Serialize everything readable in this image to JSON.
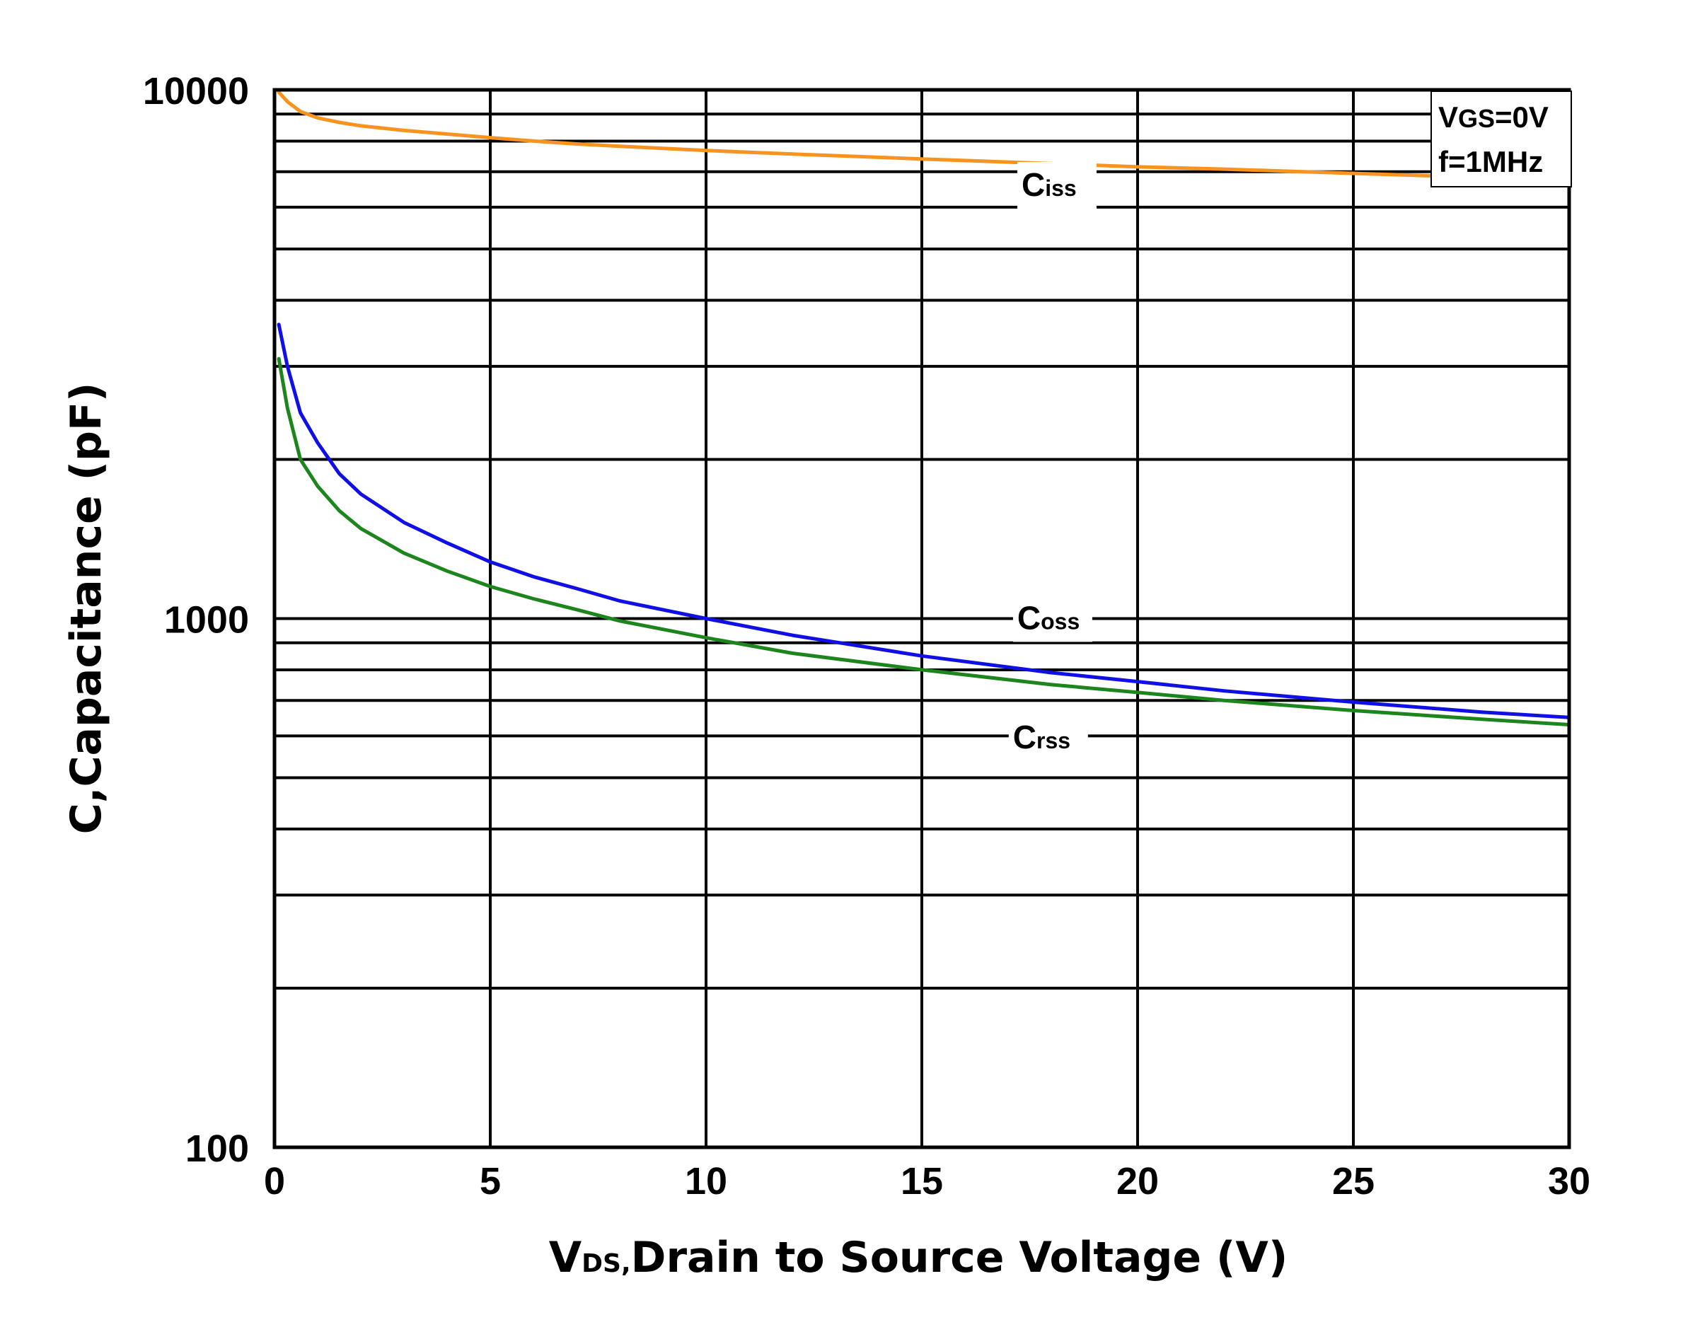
{
  "chart_data": {
    "type": "line",
    "xlabel": {
      "main": "V",
      "sub": "DS,",
      "rest": "Drain to Source Voltage (V)"
    },
    "ylabel": "C,Capacitance (pF)",
    "xlim": [
      0,
      30
    ],
    "ylim": [
      100,
      10000
    ],
    "yscale": "log",
    "grid": true,
    "x_ticks": [
      0,
      5,
      10,
      15,
      20,
      25,
      30
    ],
    "x_tick_labels": [
      "0",
      "5",
      "10",
      "15",
      "20",
      "25",
      "30"
    ],
    "y_ticks": [
      100,
      1000,
      10000
    ],
    "y_tick_labels": [
      "100",
      "1000",
      "10000"
    ],
    "conditions": [
      {
        "main": "V",
        "sub": "GS",
        "rest": "=0V"
      },
      {
        "main": "f=1MHz",
        "sub": "",
        "rest": ""
      }
    ],
    "series": [
      {
        "name": {
          "main": "C",
          "sub": "iss"
        },
        "color": "#f7931e",
        "x": [
          0.1,
          0.3,
          0.6,
          1,
          1.5,
          2,
          3,
          4,
          5,
          6,
          7,
          8,
          10,
          12,
          15,
          18,
          20,
          22,
          25,
          27
        ],
        "y": [
          9900,
          9500,
          9100,
          8850,
          8680,
          8550,
          8380,
          8250,
          8120,
          8000,
          7900,
          7820,
          7680,
          7560,
          7400,
          7250,
          7150,
          7080,
          6950,
          6870
        ]
      },
      {
        "name": {
          "main": "C",
          "sub": "oss"
        },
        "color": "#1010e6",
        "x": [
          0.1,
          0.3,
          0.6,
          1,
          1.5,
          2,
          3,
          4,
          5,
          6,
          7,
          8,
          10,
          12,
          15,
          18,
          20,
          22,
          25,
          28,
          30
        ],
        "y": [
          3600,
          3000,
          2450,
          2150,
          1880,
          1720,
          1520,
          1390,
          1280,
          1200,
          1140,
          1080,
          1000,
          930,
          850,
          790,
          760,
          730,
          695,
          665,
          650
        ]
      },
      {
        "name": {
          "main": "C",
          "sub": "rss"
        },
        "color": "#1c851c",
        "x": [
          0.1,
          0.3,
          0.6,
          1,
          1.5,
          2,
          3,
          4,
          5,
          6,
          7,
          8,
          10,
          12,
          15,
          18,
          20,
          22,
          25,
          28,
          30
        ],
        "y": [
          3100,
          2500,
          2000,
          1780,
          1600,
          1480,
          1330,
          1230,
          1150,
          1090,
          1040,
          990,
          920,
          860,
          800,
          750,
          725,
          700,
          670,
          645,
          630
        ]
      }
    ]
  }
}
